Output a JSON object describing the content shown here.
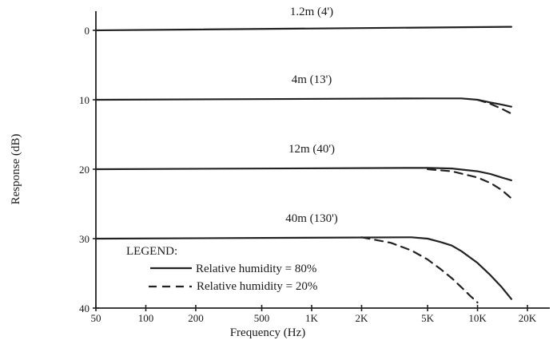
{
  "chart_data": {
    "type": "line",
    "title": "",
    "xlabel": "Frequency (Hz)",
    "ylabel": "Response (dB)",
    "x_scale": "log",
    "y_inverted": true,
    "xlim": [
      50,
      20000
    ],
    "ylim": [
      0,
      40
    ],
    "x_ticks": [
      {
        "value": 50,
        "label": "50"
      },
      {
        "value": 100,
        "label": "100"
      },
      {
        "value": 200,
        "label": "200"
      },
      {
        "value": 500,
        "label": "500"
      },
      {
        "value": 1000,
        "label": "1K"
      },
      {
        "value": 2000,
        "label": "2K"
      },
      {
        "value": 5000,
        "label": "5K"
      },
      {
        "value": 10000,
        "label": "10K"
      },
      {
        "value": 20000,
        "label": "20K"
      }
    ],
    "y_ticks": [
      {
        "value": 0,
        "label": "0"
      },
      {
        "value": 10,
        "label": "10"
      },
      {
        "value": 20,
        "label": "20"
      },
      {
        "value": 30,
        "label": "30"
      },
      {
        "value": 40,
        "label": "40"
      }
    ],
    "grid": false,
    "legend": {
      "title": "LEGEND:",
      "position": "bottom-left",
      "entries": [
        {
          "label": "Relative humidity = 80%",
          "style": "solid"
        },
        {
          "label": "Relative humidity = 20%",
          "style": "dashed"
        }
      ]
    },
    "line_color": "#222222",
    "series_labels": [
      {
        "text": "1.2m (4')",
        "x": 1000,
        "y": -2.2
      },
      {
        "text": "4m (13')",
        "x": 1000,
        "y": 7.6
      },
      {
        "text": "12m (40')",
        "x": 1000,
        "y": 17.6
      },
      {
        "text": "40m (130')",
        "x": 1000,
        "y": 27.6
      }
    ],
    "series": [
      {
        "distance": "1.2m (4')",
        "humidity": "80%",
        "style": "solid",
        "x": [
          50,
          16000
        ],
        "y": [
          0,
          -0.5
        ]
      },
      {
        "distance": "4m (13')",
        "humidity": "80%",
        "style": "solid",
        "x": [
          50,
          5000,
          8000,
          10000,
          12000,
          14000,
          16000
        ],
        "y": [
          10,
          9.8,
          9.8,
          10.0,
          10.4,
          10.7,
          11.0
        ]
      },
      {
        "distance": "4m (13')",
        "humidity": "20%",
        "style": "dashed",
        "x": [
          10000,
          12000,
          14000,
          16000
        ],
        "y": [
          10.0,
          10.6,
          11.3,
          12.0
        ]
      },
      {
        "distance": "12m (40')",
        "humidity": "80%",
        "style": "solid",
        "x": [
          50,
          5000,
          7000,
          10000,
          12000,
          14000,
          16000
        ],
        "y": [
          20,
          19.8,
          19.9,
          20.3,
          20.7,
          21.2,
          21.6
        ]
      },
      {
        "distance": "12m (40')",
        "humidity": "20%",
        "style": "dashed",
        "x": [
          5000,
          7000,
          10000,
          12000,
          14000,
          16000
        ],
        "y": [
          20.0,
          20.3,
          21.2,
          22.0,
          23.0,
          24.2
        ]
      },
      {
        "distance": "40m (130')",
        "humidity": "80%",
        "style": "solid",
        "x": [
          50,
          4000,
          5000,
          6000,
          7000,
          8000,
          10000,
          12000,
          14000,
          16000
        ],
        "y": [
          30,
          29.8,
          30.0,
          30.5,
          31.0,
          31.8,
          33.5,
          35.3,
          37.0,
          38.7
        ]
      },
      {
        "distance": "40m (130')",
        "humidity": "20%",
        "style": "dashed",
        "x": [
          2000,
          3000,
          4000,
          5000,
          6000,
          7000,
          8000,
          9000,
          10000
        ],
        "y": [
          29.8,
          30.6,
          31.7,
          33.0,
          34.4,
          35.7,
          37.0,
          38.2,
          39.2
        ]
      }
    ]
  }
}
